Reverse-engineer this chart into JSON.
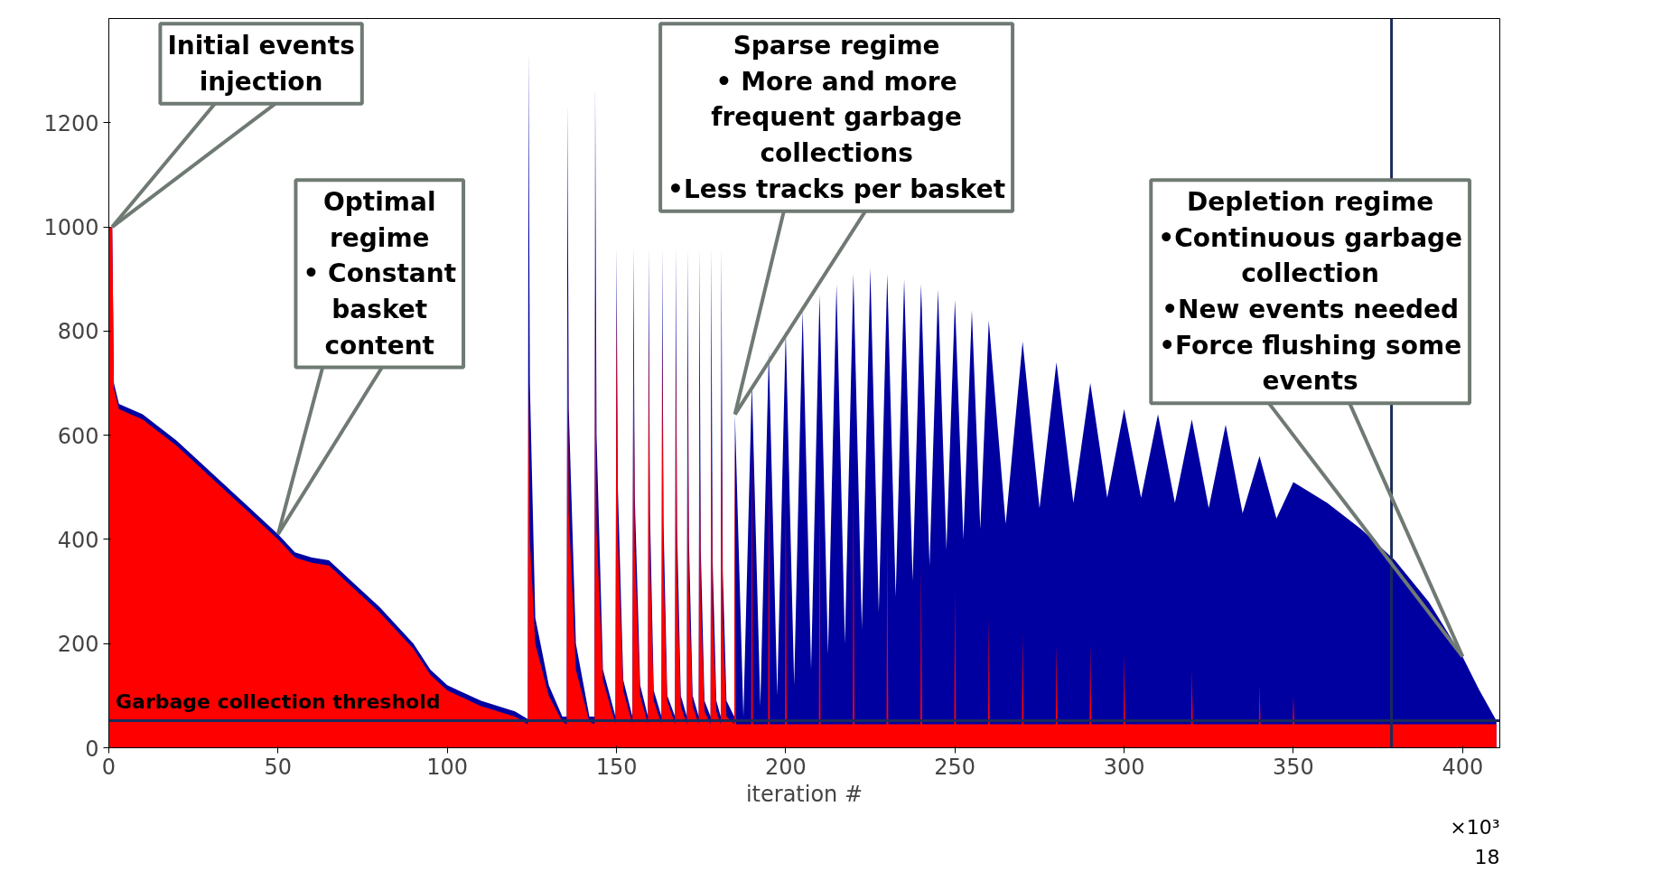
{
  "chart_data": {
    "type": "area",
    "xlabel": "iteration #",
    "xlim": [
      0,
      411
    ],
    "ylim": [
      0,
      1400
    ],
    "xticks": [
      0,
      50,
      100,
      150,
      200,
      250,
      300,
      350,
      400
    ],
    "yticks": [
      0,
      200,
      400,
      600,
      800,
      1000,
      1200
    ],
    "series": [
      {
        "color": "#0000a0",
        "x": [
          0,
          1,
          1.5,
          3,
          10,
          20,
          30,
          40,
          50,
          55,
          60,
          65,
          70,
          80,
          90,
          95,
          100,
          110,
          120,
          123.8,
          124,
          124.4,
          126,
          130,
          134,
          135.3,
          135.5,
          135.9,
          138,
          142,
          143.5,
          143.7,
          144.1,
          146,
          149.7,
          150,
          150.4,
          152,
          154.7,
          155,
          155.4,
          157,
          159.3,
          159.5,
          159.9,
          161,
          163.3,
          163.5,
          163.9,
          165,
          167.3,
          167.5,
          167.9,
          169,
          170.8,
          171,
          171.4,
          172.5,
          174.3,
          174.5,
          174.9,
          176,
          177.8,
          178,
          178.4,
          179.5,
          180.8,
          181,
          181.4,
          182.5,
          184.8,
          185,
          187.5,
          190,
          192.5,
          195,
          197.5,
          200,
          202.5,
          205,
          207.5,
          210,
          212.5,
          215,
          217.5,
          220,
          222.5,
          225,
          227.5,
          230,
          232.5,
          235,
          237.5,
          240,
          242.5,
          245,
          247.5,
          250,
          252.5,
          255,
          257.5,
          260,
          265,
          270,
          275,
          280,
          285,
          290,
          295,
          300,
          305,
          310,
          315,
          320,
          325,
          330,
          335,
          340,
          345,
          350,
          360,
          370,
          380,
          390,
          400,
          405,
          410
        ],
        "values": [
          1000,
          1000,
          700,
          660,
          640,
          590,
          530,
          470,
          410,
          375,
          365,
          360,
          330,
          270,
          200,
          150,
          120,
          90,
          70,
          55,
          1340,
          700,
          250,
          120,
          60,
          60,
          1240,
          650,
          200,
          60,
          60,
          1275,
          600,
          150,
          60,
          960,
          500,
          130,
          60,
          960,
          480,
          120,
          60,
          960,
          450,
          110,
          60,
          960,
          430,
          100,
          60,
          960,
          420,
          100,
          60,
          960,
          400,
          100,
          60,
          960,
          380,
          90,
          60,
          960,
          360,
          90,
          60,
          960,
          340,
          90,
          60,
          640,
          60,
          700,
          80,
          760,
          100,
          800,
          120,
          840,
          150,
          870,
          180,
          890,
          200,
          910,
          230,
          920,
          260,
          910,
          290,
          900,
          320,
          890,
          350,
          880,
          380,
          860,
          400,
          840,
          420,
          820,
          430,
          780,
          460,
          740,
          470,
          700,
          480,
          650,
          480,
          640,
          470,
          630,
          460,
          620,
          450,
          560,
          440,
          510,
          470,
          420,
          360,
          280,
          175,
          110,
          52
        ]
      },
      {
        "color": "#ff0000",
        "x": [
          0,
          1,
          1.5,
          3,
          10,
          20,
          30,
          40,
          50,
          55,
          60,
          65,
          70,
          80,
          90,
          95,
          100,
          110,
          120,
          123.8,
          124,
          124.4,
          126,
          130,
          134,
          135.3,
          135.5,
          135.9,
          138,
          142,
          143.5,
          143.7,
          144.1,
          146,
          149.7,
          150,
          150.4,
          152,
          154.7,
          155,
          155.4,
          157,
          159.3,
          159.5,
          159.9,
          161,
          163.3,
          163.5,
          163.9,
          165,
          167.3,
          167.5,
          167.9,
          169,
          170.8,
          171,
          171.4,
          172.5,
          174.3,
          174.5,
          174.9,
          176,
          177.8,
          178,
          178.4,
          179.5,
          180.8,
          181,
          181.4,
          182.5,
          184.8,
          185,
          185.3,
          189.8,
          190,
          190.3,
          194.8,
          195,
          195.3,
          199.8,
          200,
          200.3,
          209.8,
          210,
          210.3,
          219.8,
          220,
          220.3,
          229.8,
          230,
          230.3,
          239.8,
          240,
          240.3,
          249.8,
          250,
          250.3,
          259.8,
          260,
          260.3,
          269.8,
          270,
          270.3,
          279.8,
          280,
          280.3,
          289.8,
          290,
          290.3,
          299.8,
          300,
          300.3,
          319.8,
          320,
          320.3,
          339.8,
          340,
          340.3,
          349.8,
          350,
          350.3,
          410
        ],
        "values": [
          1000,
          1000,
          690,
          650,
          630,
          580,
          520,
          460,
          400,
          365,
          355,
          350,
          320,
          260,
          190,
          140,
          110,
          80,
          60,
          45,
          700,
          400,
          200,
          100,
          50,
          45,
          900,
          450,
          150,
          50,
          45,
          870,
          420,
          130,
          45,
          860,
          400,
          110,
          45,
          840,
          380,
          100,
          45,
          820,
          360,
          90,
          45,
          800,
          340,
          90,
          45,
          780,
          320,
          80,
          45,
          760,
          300,
          80,
          45,
          740,
          280,
          70,
          45,
          720,
          260,
          70,
          45,
          700,
          240,
          60,
          45,
          600,
          45,
          45,
          600,
          45,
          45,
          550,
          45,
          45,
          500,
          45,
          45,
          470,
          45,
          45,
          500,
          45,
          45,
          400,
          45,
          45,
          350,
          45,
          45,
          300,
          45,
          45,
          250,
          45,
          45,
          220,
          45,
          45,
          200,
          45,
          45,
          200,
          45,
          45,
          180,
          45,
          45,
          150,
          45,
          45,
          120,
          45,
          45,
          100,
          45,
          45
        ]
      }
    ],
    "ref_lines": [
      {
        "axis": "y",
        "value": 52,
        "label": "Garbage collection threshold",
        "color": "#1a2a5a"
      },
      {
        "axis": "x",
        "value": 379,
        "label": null,
        "color": "#1a2a5a"
      }
    ],
    "annotations": [
      {
        "text": "Initial events\ninjection",
        "x": 1,
        "y": 1000
      },
      {
        "text": "Optimal\nregime\n• Constant\nbasket\ncontent",
        "x": 50,
        "y": 410
      },
      {
        "text": "Sparse regime\n• More and more\nfrequent garbage\ncollections\n•Less tracks per basket",
        "x": 185,
        "y": 640
      },
      {
        "text": "Depletion regime\n•Continuous garbage\ncollection\n•New events needed\n•Force flushing some\nevents",
        "x": 400,
        "y": 175
      },
      "×10³",
      "18"
    ]
  }
}
